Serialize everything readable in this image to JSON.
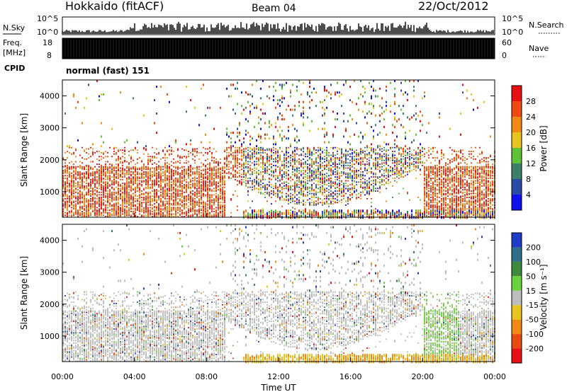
{
  "header": {
    "title": "Hokkaido (fitACF)",
    "beam": "Beam 04",
    "date": "22/Oct/2012"
  },
  "sky_panel": {
    "left_label": "N.Sky",
    "right_label": "N.Search",
    "ticks_left": [
      "10^5",
      "10^0"
    ],
    "ticks_right": [
      "10^5",
      "10^0"
    ]
  },
  "freq_panel": {
    "left_label_1": "Freq.",
    "left_label_2": "[MHz]",
    "ticks_left": [
      "18",
      "8"
    ],
    "ticks_right": [
      "60",
      "0"
    ],
    "right_label": "Nave"
  },
  "cpid_panel": {
    "label": "CPID",
    "text": "normal (fast) 151"
  },
  "chart_data": [
    {
      "type": "heatmap",
      "name": "power",
      "ylabel": "Slant Range [km]",
      "yticks": [
        "1000",
        "2000",
        "3000",
        "4000"
      ],
      "ylim": [
        200,
        4500
      ],
      "colorbar_label": "Power [dB]",
      "colorbar_ticks": [
        "4",
        "8",
        "12",
        "16",
        "20",
        "24",
        "28"
      ],
      "colorbar_colors": [
        "#1010ee",
        "#2c4aa8",
        "#3c7f6a",
        "#5fc234",
        "#e8c41c",
        "#f08a14",
        "#f04a10",
        "#e81010"
      ]
    },
    {
      "type": "heatmap",
      "name": "velocity",
      "ylabel": "Slant Range [km]",
      "yticks": [
        "1000",
        "2000",
        "3000",
        "4000"
      ],
      "ylim": [
        200,
        4500
      ],
      "colorbar_label": "Velocity [m s⁻¹]",
      "colorbar_ticks": [
        "200",
        "100",
        "50",
        "15",
        "-15",
        "-50",
        "-100",
        "-200"
      ],
      "colorbar_colors": [
        "#1e3cc8",
        "#2e6e8a",
        "#3c8a3c",
        "#6ad23c",
        "#bdbdbd",
        "#e8c41c",
        "#f08a14",
        "#e84a10",
        "#e81010"
      ]
    }
  ],
  "time_axis": {
    "label": "Time UT",
    "ticks": [
      "00:00",
      "04:00",
      "08:00",
      "12:00",
      "16:00",
      "20:00",
      "00:00"
    ]
  }
}
